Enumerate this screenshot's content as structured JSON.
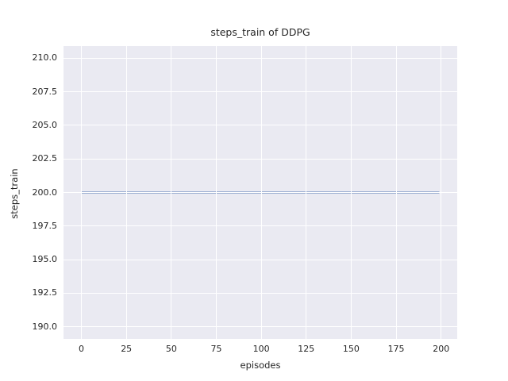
{
  "chart_data": {
    "type": "line",
    "title": "steps_train of DDPG",
    "xlabel": "episodes",
    "ylabel": "steps_train",
    "x_tick_values": [
      0,
      25,
      50,
      75,
      100,
      125,
      150,
      175,
      200
    ],
    "x_tick_labels": [
      "0",
      "25",
      "50",
      "75",
      "100",
      "125",
      "150",
      "175",
      "200"
    ],
    "y_tick_values": [
      210.0,
      207.5,
      205.0,
      202.5,
      200.0,
      197.5,
      195.0,
      192.5,
      190.0
    ],
    "y_tick_labels": [
      "210.0",
      "207.5",
      "205.0",
      "202.5",
      "200.0",
      "197.5",
      "195.0",
      "192.5",
      "190.0"
    ],
    "xlim": [
      -9.95,
      208.95
    ],
    "ylim": [
      189.1,
      210.9
    ],
    "grid": true,
    "legend": "none",
    "background_color": "#eaeaf2",
    "grid_color": "#ffffff",
    "text_color": "#262626",
    "series": [
      {
        "name": "steps_train",
        "color": "#4c72b0",
        "description": "constant value 200 for every episode from 0 to 199",
        "x": [
          0,
          199
        ],
        "y": [
          200,
          200
        ]
      }
    ]
  }
}
